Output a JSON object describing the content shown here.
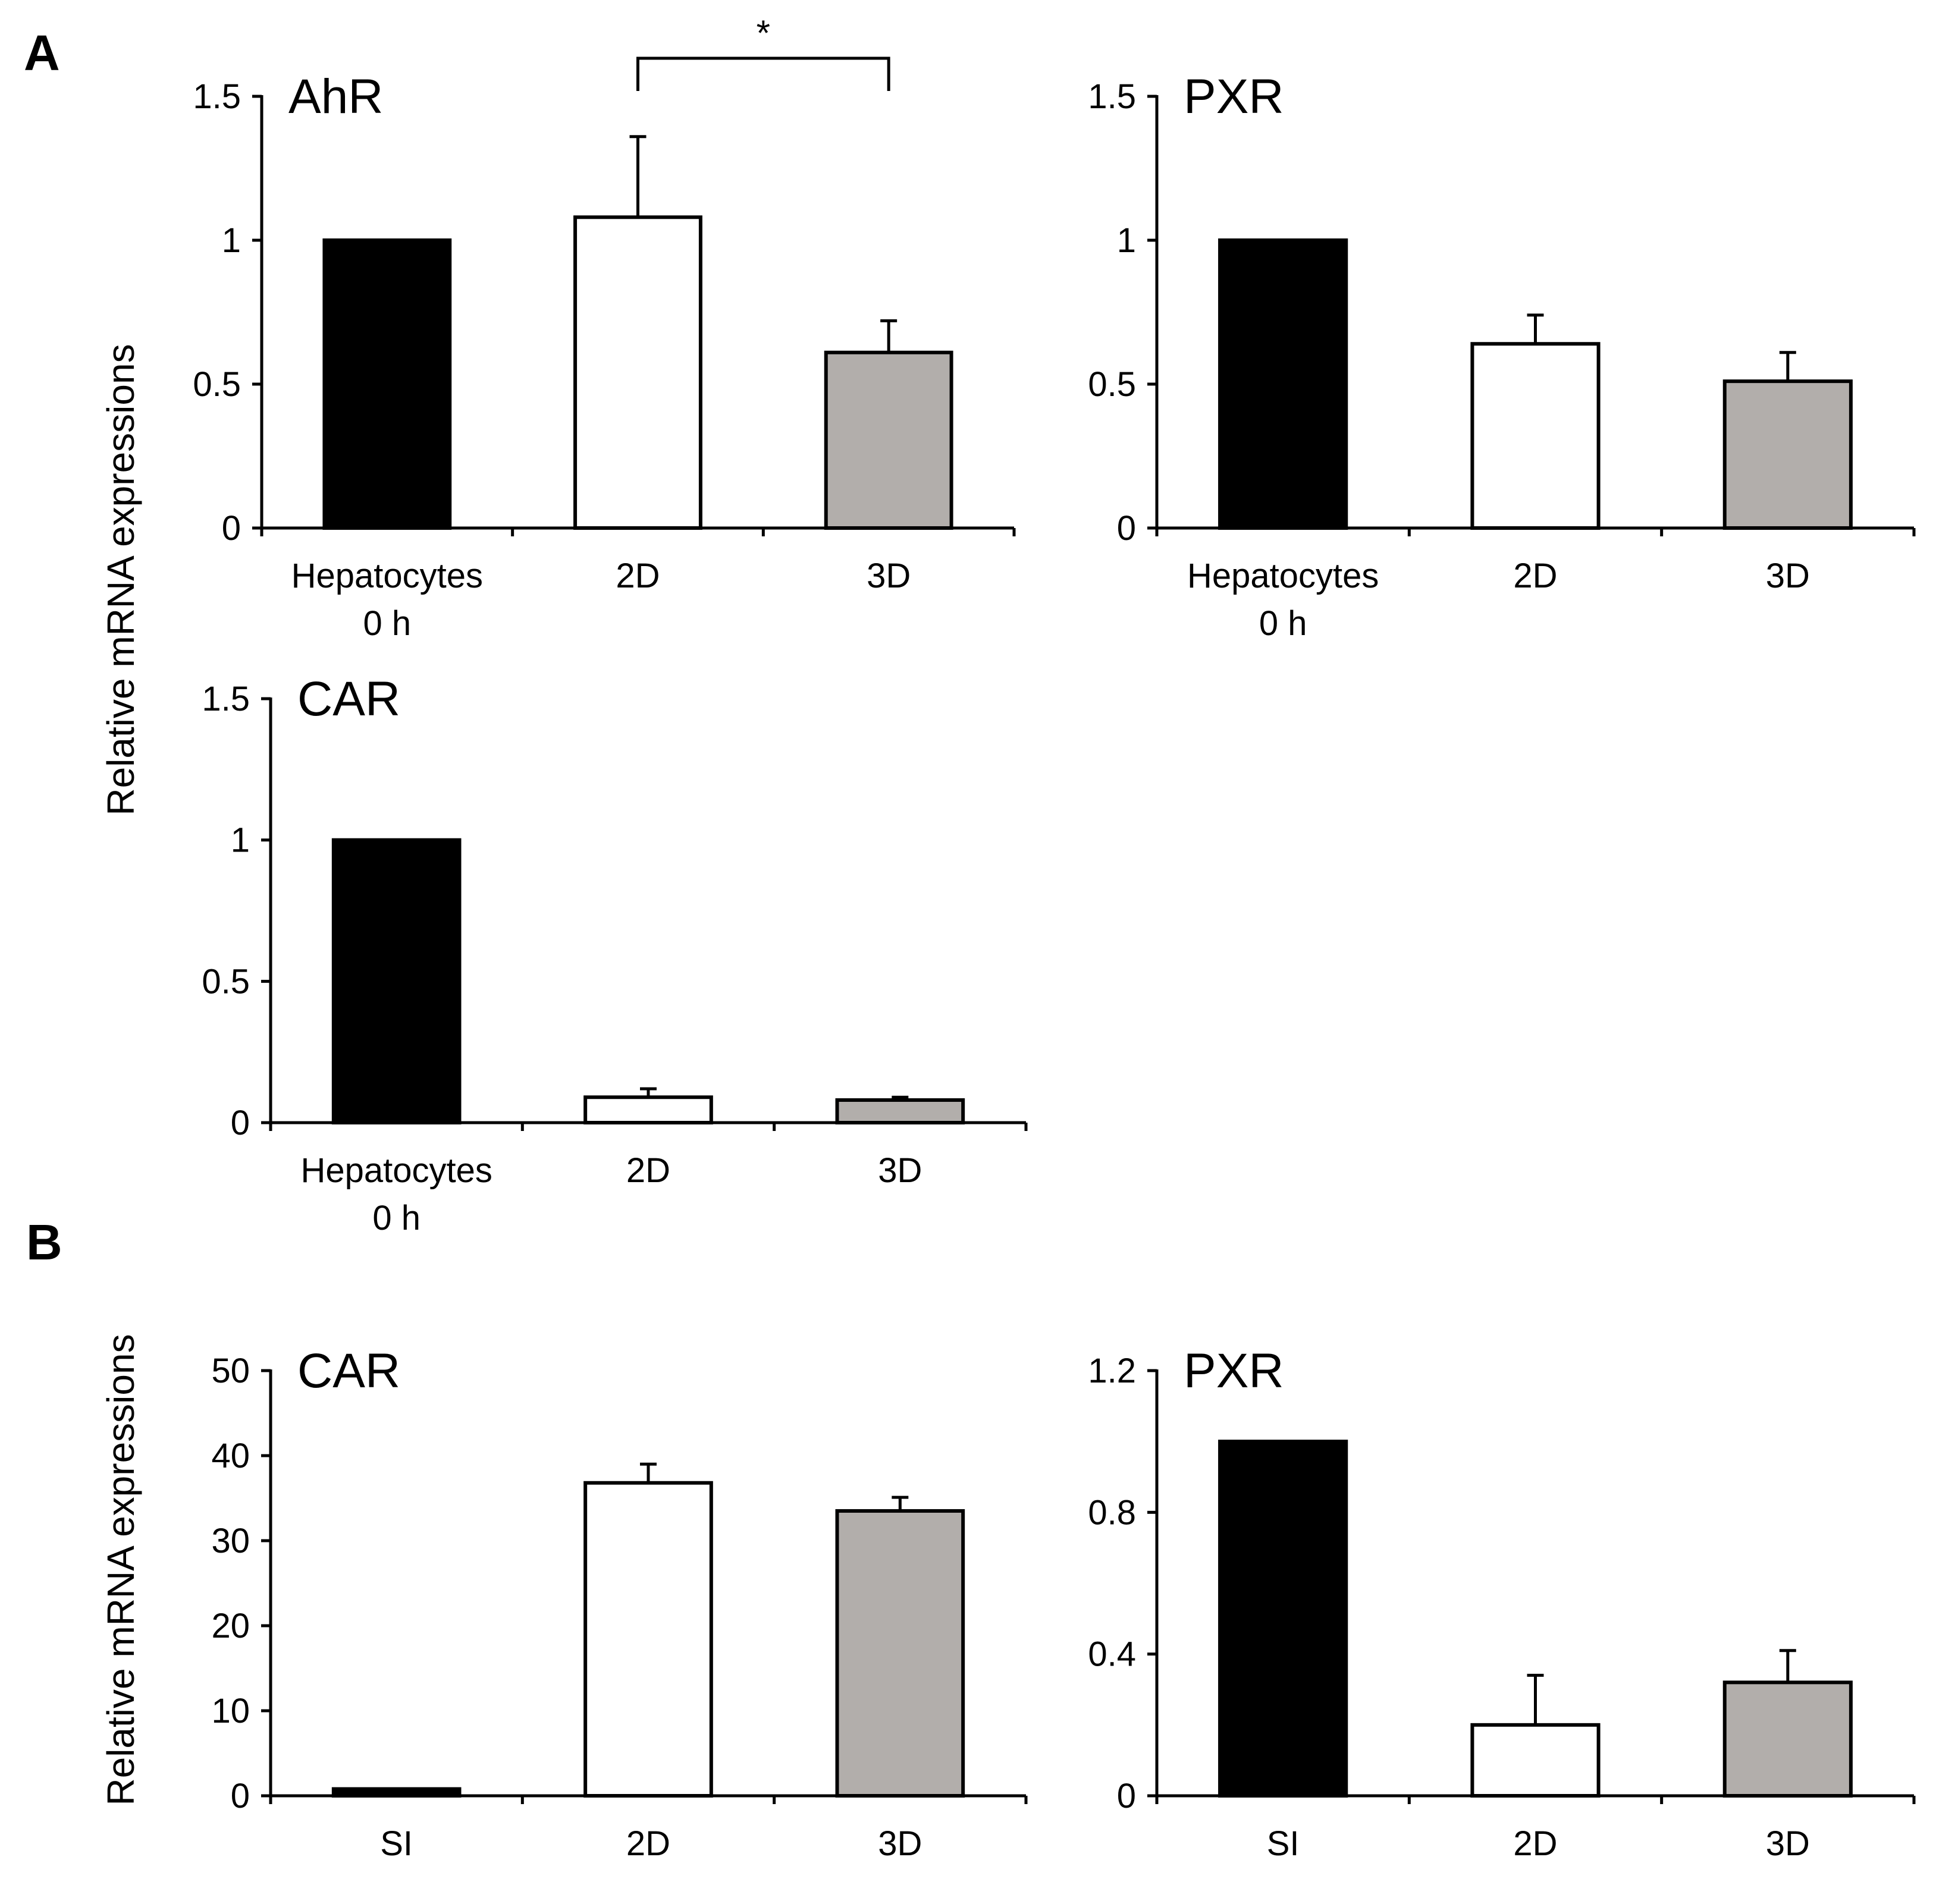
{
  "figure": {
    "panel_a_label": "A",
    "panel_b_label": "B",
    "ylabel_a": "Relative mRNA expressions",
    "ylabel_b": "Relative mRNA expressions"
  },
  "colors": {
    "black": "#000000",
    "white": "#ffffff",
    "gray": "#b2aeab"
  },
  "chart_data": [
    {
      "id": "a_ahr",
      "type": "bar",
      "title": "AhR",
      "categories": [
        [
          "Hepatocytes",
          "0 h"
        ],
        [
          "2D"
        ],
        [
          "3D"
        ]
      ],
      "values": [
        1.0,
        1.08,
        0.61
      ],
      "errors": [
        0.0,
        0.28,
        0.11
      ],
      "fills": [
        "black",
        "white",
        "gray"
      ],
      "ylim": [
        0,
        1.5
      ],
      "yticks": [
        0,
        0.5,
        1,
        1.5
      ],
      "ytick_labels": [
        "0",
        "0.5",
        "1",
        "1.5"
      ],
      "significance": {
        "from": 1,
        "to": 2,
        "label": "*"
      }
    },
    {
      "id": "a_pxr",
      "type": "bar",
      "title": "PXR",
      "categories": [
        [
          "Hepatocytes",
          "0 h"
        ],
        [
          "2D"
        ],
        [
          "3D"
        ]
      ],
      "values": [
        1.0,
        0.64,
        0.51
      ],
      "errors": [
        0.0,
        0.1,
        0.1
      ],
      "fills": [
        "black",
        "white",
        "gray"
      ],
      "ylim": [
        0,
        1.5
      ],
      "yticks": [
        0,
        0.5,
        1,
        1.5
      ],
      "ytick_labels": [
        "0",
        "0.5",
        "1",
        "1.5"
      ]
    },
    {
      "id": "a_car",
      "type": "bar",
      "title": "CAR",
      "categories": [
        [
          "Hepatocytes",
          "0 h"
        ],
        [
          "2D"
        ],
        [
          "3D"
        ]
      ],
      "values": [
        1.0,
        0.09,
        0.08
      ],
      "errors": [
        0.0,
        0.03,
        0.01
      ],
      "fills": [
        "black",
        "white",
        "gray"
      ],
      "ylim": [
        0,
        1.5
      ],
      "yticks": [
        0,
        0.5,
        1,
        1.5
      ],
      "ytick_labels": [
        "0",
        "0.5",
        "1",
        "1.5"
      ]
    },
    {
      "id": "b_car",
      "type": "bar",
      "title": "CAR",
      "categories": [
        [
          "SI"
        ],
        [
          "2D"
        ],
        [
          "3D"
        ]
      ],
      "values": [
        0.8,
        36.8,
        33.5
      ],
      "errors": [
        0.0,
        2.2,
        1.6
      ],
      "fills": [
        "black",
        "white",
        "gray"
      ],
      "ylim": [
        0,
        50
      ],
      "yticks": [
        0,
        10,
        20,
        30,
        40,
        50
      ],
      "ytick_labels": [
        "0",
        "10",
        "20",
        "30",
        "40",
        "50"
      ]
    },
    {
      "id": "b_pxr",
      "type": "bar",
      "title": "PXR",
      "categories": [
        [
          "SI"
        ],
        [
          "2D"
        ],
        [
          "3D"
        ]
      ],
      "values": [
        1.0,
        0.2,
        0.32
      ],
      "errors": [
        0.0,
        0.14,
        0.09
      ],
      "fills": [
        "black",
        "white",
        "gray"
      ],
      "ylim": [
        0,
        1.2
      ],
      "yticks": [
        0,
        0.4,
        0.8,
        1.2
      ],
      "ytick_labels": [
        "0",
        "0.4",
        "0.8",
        "1.2"
      ]
    }
  ]
}
